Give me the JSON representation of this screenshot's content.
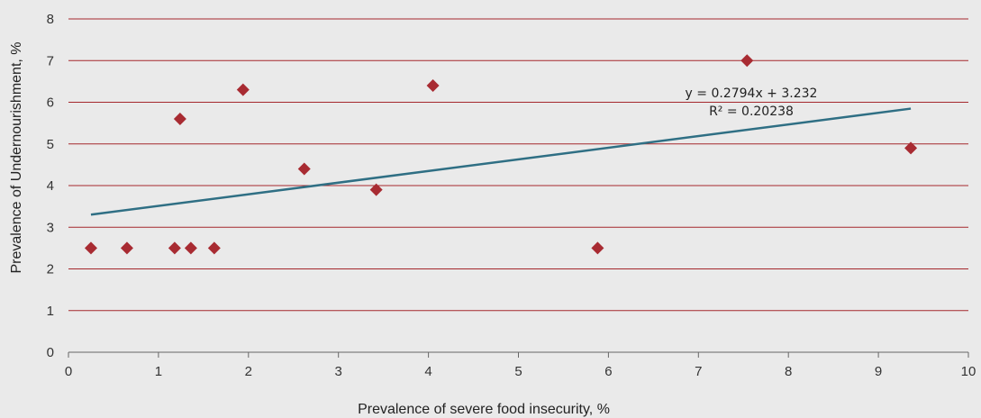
{
  "chart_data": {
    "type": "scatter",
    "xlabel": "Prevalence of severe food insecurity, %",
    "ylabel": "Prevalence of Undernourishment, %",
    "xlim": [
      0,
      10
    ],
    "ylim": [
      0,
      8
    ],
    "x_ticks": [
      "0",
      "1",
      "2",
      "3",
      "4",
      "5",
      "6",
      "7",
      "8",
      "9",
      "10"
    ],
    "y_ticks": [
      "0",
      "1",
      "2",
      "3",
      "4",
      "5",
      "6",
      "7",
      "8"
    ],
    "grid": "horizontal",
    "series": [
      {
        "points": [
          {
            "x": 0.25,
            "y": 2.5
          },
          {
            "x": 0.65,
            "y": 2.5
          },
          {
            "x": 1.18,
            "y": 2.5
          },
          {
            "x": 1.36,
            "y": 2.5
          },
          {
            "x": 1.62,
            "y": 2.5
          },
          {
            "x": 1.24,
            "y": 5.6
          },
          {
            "x": 1.94,
            "y": 6.3
          },
          {
            "x": 2.62,
            "y": 4.4
          },
          {
            "x": 3.42,
            "y": 3.9
          },
          {
            "x": 4.05,
            "y": 6.4
          },
          {
            "x": 5.88,
            "y": 2.5
          },
          {
            "x": 7.54,
            "y": 7.0
          },
          {
            "x": 9.36,
            "y": 4.9
          }
        ]
      }
    ],
    "trendline": {
      "slope": 0.2794,
      "intercept": 3.232,
      "x_range": [
        0.25,
        9.36
      ],
      "equation": "y = 0.2794x + 3.232",
      "r_squared": "R² = 0.20238"
    },
    "colors": {
      "background": "#eaeaea",
      "gridline": "#a5282d",
      "marker": "#a82b32",
      "trendline": "#2f6f84"
    }
  }
}
